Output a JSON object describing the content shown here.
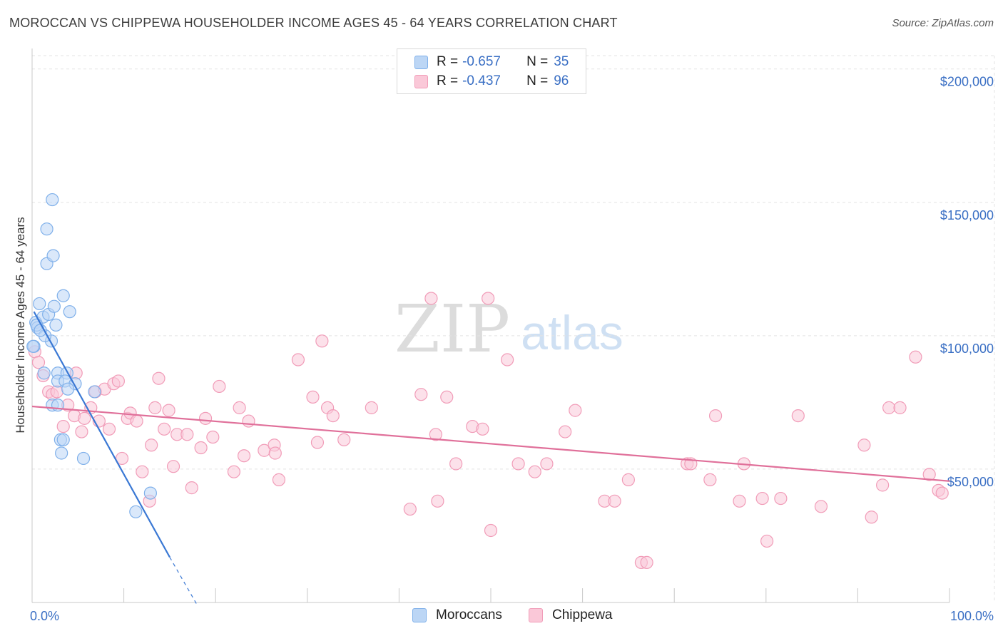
{
  "title": "MOROCCAN VS CHIPPEWA HOUSEHOLDER INCOME AGES 45 - 64 YEARS CORRELATION CHART",
  "source": "Source: ZipAtlas.com",
  "watermark": {
    "zip": "ZIP",
    "atlas": "atlas"
  },
  "legend": {
    "rows": [
      {
        "r_label": "R =",
        "r_value": "-0.657",
        "n_label": "N =",
        "n_value": "35",
        "color": "#7fb0ea",
        "fill": "#bcd6f5"
      },
      {
        "r_label": "R =",
        "r_value": "-0.437",
        "n_label": "N =",
        "n_value": "96",
        "color": "#f19cb8",
        "fill": "#fac8d8"
      }
    ]
  },
  "bottom_legend": {
    "items": [
      {
        "label": "Moroccans"
      },
      {
        "label": "Chippewa"
      }
    ]
  },
  "chart_data": {
    "type": "scatter",
    "title": "MOROCCAN VS CHIPPEWA HOUSEHOLDER INCOME AGES 45 - 64 YEARS CORRELATION CHART",
    "xlabel": "",
    "ylabel": "Householder Income Ages 45 - 64 years",
    "xlim": [
      0,
      100
    ],
    "ylim": [
      0,
      205000
    ],
    "x_tick_labels": [
      "0.0%",
      "100.0%"
    ],
    "y_ticks": [
      50000,
      100000,
      150000,
      200000
    ],
    "y_tick_labels": [
      "$50,000",
      "$100,000",
      "$150,000",
      "$200,000"
    ],
    "grid": true,
    "series": [
      {
        "name": "Moroccans",
        "color": "#7fb0ea",
        "fill": "#bcd6f5",
        "line_color": "#3a78d4",
        "trend": {
          "x0": 0.2,
          "y0": 109000,
          "x1": 15.0,
          "y1": 17000,
          "dash_to_x": 18.0,
          "dash_to_y": -1000
        },
        "points": [
          [
            0.2,
            96000
          ],
          [
            0.4,
            105000
          ],
          [
            0.6,
            103000
          ],
          [
            0.8,
            112000
          ],
          [
            1.2,
            107000
          ],
          [
            1.8,
            108000
          ],
          [
            2.2,
            151000
          ],
          [
            1.6,
            140000
          ],
          [
            1.6,
            127000
          ],
          [
            2.3,
            130000
          ],
          [
            3.4,
            115000
          ],
          [
            4.1,
            109000
          ],
          [
            2.4,
            111000
          ],
          [
            2.6,
            104000
          ],
          [
            2.1,
            98000
          ],
          [
            1.4,
            100000
          ],
          [
            1.3,
            86000
          ],
          [
            2.8,
            86000
          ],
          [
            3.8,
            86000
          ],
          [
            2.8,
            83000
          ],
          [
            3.6,
            83000
          ],
          [
            4.7,
            82000
          ],
          [
            3.9,
            80000
          ],
          [
            6.8,
            79000
          ],
          [
            2.2,
            74000
          ],
          [
            2.8,
            74000
          ],
          [
            3.1,
            61000
          ],
          [
            3.4,
            61000
          ],
          [
            3.2,
            56000
          ],
          [
            5.6,
            54000
          ],
          [
            0.1,
            96000
          ],
          [
            0.5,
            104000
          ],
          [
            0.9,
            102000
          ],
          [
            12.9,
            41000
          ],
          [
            11.3,
            34000
          ]
        ]
      },
      {
        "name": "Chippewa",
        "color": "#f19cb8",
        "fill": "#fac8d8",
        "line_color": "#e0709a",
        "trend": {
          "x0": 0.0,
          "y0": 73500,
          "x1": 100.0,
          "y1": 45500
        },
        "points": [
          [
            0.3,
            94000
          ],
          [
            0.7,
            90000
          ],
          [
            1.2,
            85000
          ],
          [
            1.8,
            79000
          ],
          [
            2.2,
            78000
          ],
          [
            2.7,
            79000
          ],
          [
            3.4,
            66000
          ],
          [
            3.9,
            74000
          ],
          [
            4.6,
            70000
          ],
          [
            4.8,
            86000
          ],
          [
            5.4,
            64000
          ],
          [
            5.7,
            69000
          ],
          [
            6.4,
            73000
          ],
          [
            6.9,
            79000
          ],
          [
            7.3,
            68000
          ],
          [
            7.9,
            80000
          ],
          [
            8.4,
            65000
          ],
          [
            8.9,
            82000
          ],
          [
            9.4,
            83000
          ],
          [
            9.8,
            54000
          ],
          [
            10.4,
            69000
          ],
          [
            10.7,
            71000
          ],
          [
            11.4,
            68000
          ],
          [
            12.0,
            49000
          ],
          [
            12.8,
            38000
          ],
          [
            13.0,
            59000
          ],
          [
            13.4,
            73000
          ],
          [
            13.8,
            84000
          ],
          [
            14.4,
            65000
          ],
          [
            14.9,
            72000
          ],
          [
            15.4,
            51000
          ],
          [
            15.8,
            63000
          ],
          [
            16.9,
            63000
          ],
          [
            17.4,
            43000
          ],
          [
            18.4,
            58000
          ],
          [
            18.9,
            69000
          ],
          [
            19.7,
            62000
          ],
          [
            20.4,
            81000
          ],
          [
            22.0,
            49000
          ],
          [
            22.6,
            73000
          ],
          [
            23.1,
            55000
          ],
          [
            23.6,
            68000
          ],
          [
            25.3,
            57000
          ],
          [
            26.4,
            59000
          ],
          [
            26.5,
            56000
          ],
          [
            26.9,
            46000
          ],
          [
            29.0,
            91000
          ],
          [
            30.6,
            77000
          ],
          [
            31.1,
            60000
          ],
          [
            31.6,
            98000
          ],
          [
            32.2,
            73000
          ],
          [
            32.8,
            70000
          ],
          [
            34.0,
            61000
          ],
          [
            37.0,
            73000
          ],
          [
            41.2,
            35000
          ],
          [
            42.4,
            78000
          ],
          [
            43.5,
            114000
          ],
          [
            44.0,
            63000
          ],
          [
            44.2,
            38000
          ],
          [
            45.2,
            77000
          ],
          [
            46.2,
            52000
          ],
          [
            48.0,
            66000
          ],
          [
            49.1,
            65000
          ],
          [
            49.7,
            114000
          ],
          [
            50.0,
            27000
          ],
          [
            51.8,
            91000
          ],
          [
            53.0,
            52000
          ],
          [
            54.8,
            49000
          ],
          [
            56.1,
            52000
          ],
          [
            58.1,
            64000
          ],
          [
            59.2,
            72000
          ],
          [
            62.4,
            38000
          ],
          [
            63.5,
            38000
          ],
          [
            65.0,
            46000
          ],
          [
            66.4,
            15000
          ],
          [
            67.0,
            15000
          ],
          [
            71.4,
            52000
          ],
          [
            71.8,
            52000
          ],
          [
            73.9,
            46000
          ],
          [
            74.5,
            70000
          ],
          [
            77.1,
            38000
          ],
          [
            77.6,
            52000
          ],
          [
            79.6,
            39000
          ],
          [
            80.1,
            23000
          ],
          [
            81.6,
            39000
          ],
          [
            83.5,
            70000
          ],
          [
            86.0,
            36000
          ],
          [
            90.7,
            59000
          ],
          [
            91.5,
            32000
          ],
          [
            92.7,
            44000
          ],
          [
            93.4,
            73000
          ],
          [
            94.6,
            73000
          ],
          [
            96.3,
            92000
          ],
          [
            97.8,
            48000
          ],
          [
            98.8,
            42000
          ],
          [
            99.2,
            41000
          ]
        ]
      }
    ]
  }
}
